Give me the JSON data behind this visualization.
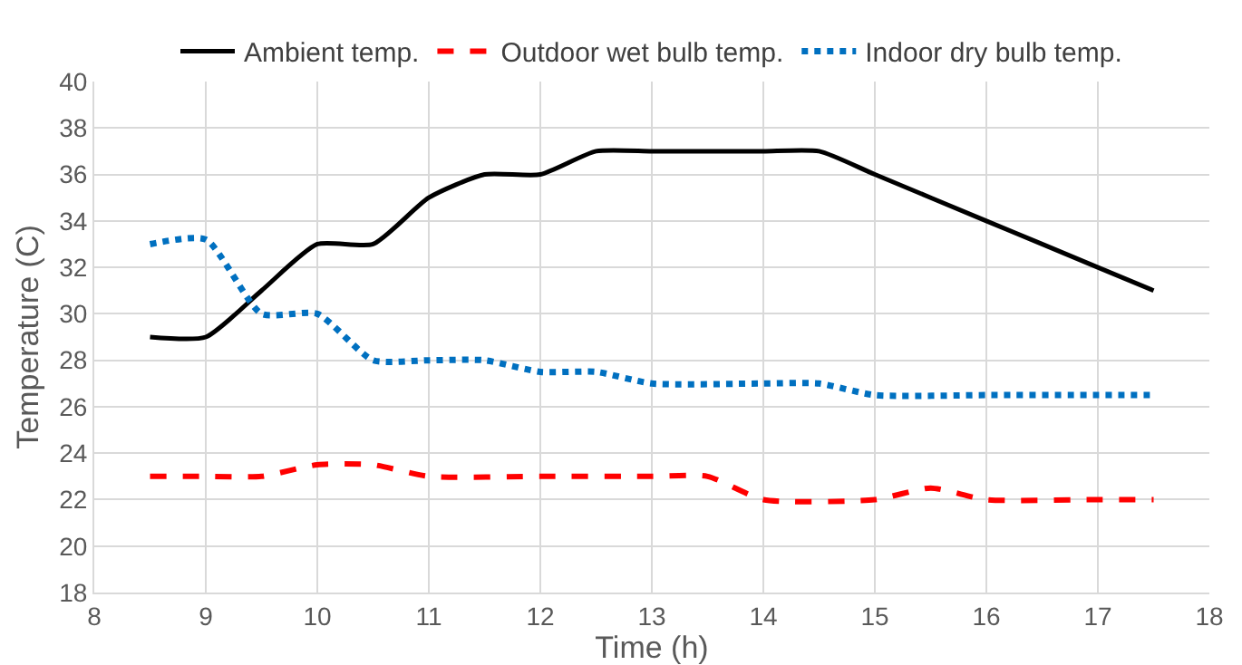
{
  "chart_data": {
    "type": "line",
    "xlabel": "Time (h)",
    "ylabel": "Temperature (C)",
    "xlim": [
      8,
      18
    ],
    "xticks": [
      8,
      9,
      10,
      11,
      12,
      13,
      14,
      15,
      16,
      17,
      18
    ],
    "ylim": [
      18,
      40
    ],
    "yticks": [
      18,
      20,
      22,
      24,
      26,
      28,
      30,
      32,
      34,
      36,
      38,
      40
    ],
    "grid": true,
    "legend": "top",
    "marker": "none",
    "series": [
      {
        "name": "Ambient temp.",
        "color": "#000000",
        "line_style": "solid",
        "x": [
          8.5,
          9,
          9.5,
          10,
          10.5,
          11,
          11.5,
          12,
          12.5,
          13,
          13.5,
          14,
          14.5,
          15,
          16,
          17,
          17.5
        ],
        "values": [
          29,
          29,
          31,
          33,
          33,
          35,
          36,
          36,
          37,
          37,
          37,
          37,
          37,
          36,
          34,
          32,
          31
        ]
      },
      {
        "name": "Outdoor wet bulb temp.",
        "color": "#ff0000",
        "line_style": "dashed",
        "x": [
          8.5,
          9,
          9.5,
          10,
          10.5,
          11,
          12,
          13,
          13.5,
          14,
          15,
          15.5,
          16,
          17,
          17.5
        ],
        "values": [
          23,
          23,
          23,
          23.5,
          23.5,
          23,
          23,
          23,
          23,
          22,
          22,
          22.5,
          22,
          22,
          22
        ]
      },
      {
        "name": "Indoor dry bulb temp.",
        "color": "#0070c0",
        "line_style": "dotted",
        "x": [
          8.5,
          9,
          9.5,
          10,
          10.5,
          11,
          11.5,
          12,
          12.5,
          13,
          14,
          14.5,
          15,
          16,
          17,
          17.5
        ],
        "values": [
          33,
          33.2,
          30,
          30,
          28,
          28,
          28,
          27.5,
          27.5,
          27,
          27,
          27,
          26.5,
          26.5,
          26.5,
          26.5
        ]
      }
    ]
  }
}
